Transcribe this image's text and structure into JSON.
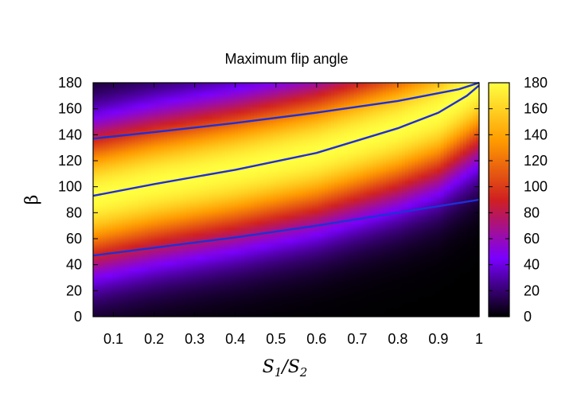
{
  "chart_data": {
    "type": "heatmap",
    "title": "Maximum flip angle",
    "ylabel": "β",
    "xlabel": {
      "base1": "S",
      "sub1": "1",
      "slash": "/",
      "base2": "S",
      "sub2": "2"
    },
    "xlim": [
      0.05,
      1.0
    ],
    "ylim": [
      0,
      180
    ],
    "x_ticks": [
      "0.1",
      "0.2",
      "0.3",
      "0.4",
      "0.5",
      "0.6",
      "0.7",
      "0.8",
      "0.9",
      "1"
    ],
    "y_ticks": [
      "0",
      "20",
      "40",
      "60",
      "80",
      "100",
      "120",
      "140",
      "160",
      "180"
    ],
    "colorbar": {
      "range": [
        0,
        180
      ],
      "ticks": [
        "0",
        "20",
        "40",
        "60",
        "80",
        "100",
        "120",
        "140",
        "160",
        "180"
      ],
      "palette": [
        "#000000",
        "#7a00ff",
        "#d02020",
        "#ff9a00",
        "#ffff40"
      ]
    },
    "contour_color": "#1f2fd6",
    "contours": [
      {
        "name": "upper",
        "points": [
          [
            0.05,
            137
          ],
          [
            0.2,
            142
          ],
          [
            0.4,
            149
          ],
          [
            0.6,
            157
          ],
          [
            0.8,
            166
          ],
          [
            0.95,
            175
          ],
          [
            1.0,
            180
          ]
        ]
      },
      {
        "name": "middle",
        "points": [
          [
            0.05,
            93
          ],
          [
            0.2,
            102
          ],
          [
            0.4,
            113
          ],
          [
            0.6,
            126
          ],
          [
            0.8,
            145
          ],
          [
            0.9,
            157
          ],
          [
            0.97,
            170
          ],
          [
            1.0,
            178
          ]
        ]
      },
      {
        "name": "lower",
        "points": [
          [
            0.05,
            47
          ],
          [
            0.2,
            53
          ],
          [
            0.4,
            61
          ],
          [
            0.6,
            70
          ],
          [
            0.8,
            80
          ],
          [
            1.0,
            90
          ]
        ]
      }
    ],
    "ridge": [
      [
        0.05,
        92
      ],
      [
        0.2,
        102
      ],
      [
        0.4,
        113
      ],
      [
        0.6,
        126
      ],
      [
        0.8,
        145
      ],
      [
        0.9,
        157
      ],
      [
        1.0,
        179
      ]
    ],
    "spread_low": 45,
    "spread_high": 44
  }
}
